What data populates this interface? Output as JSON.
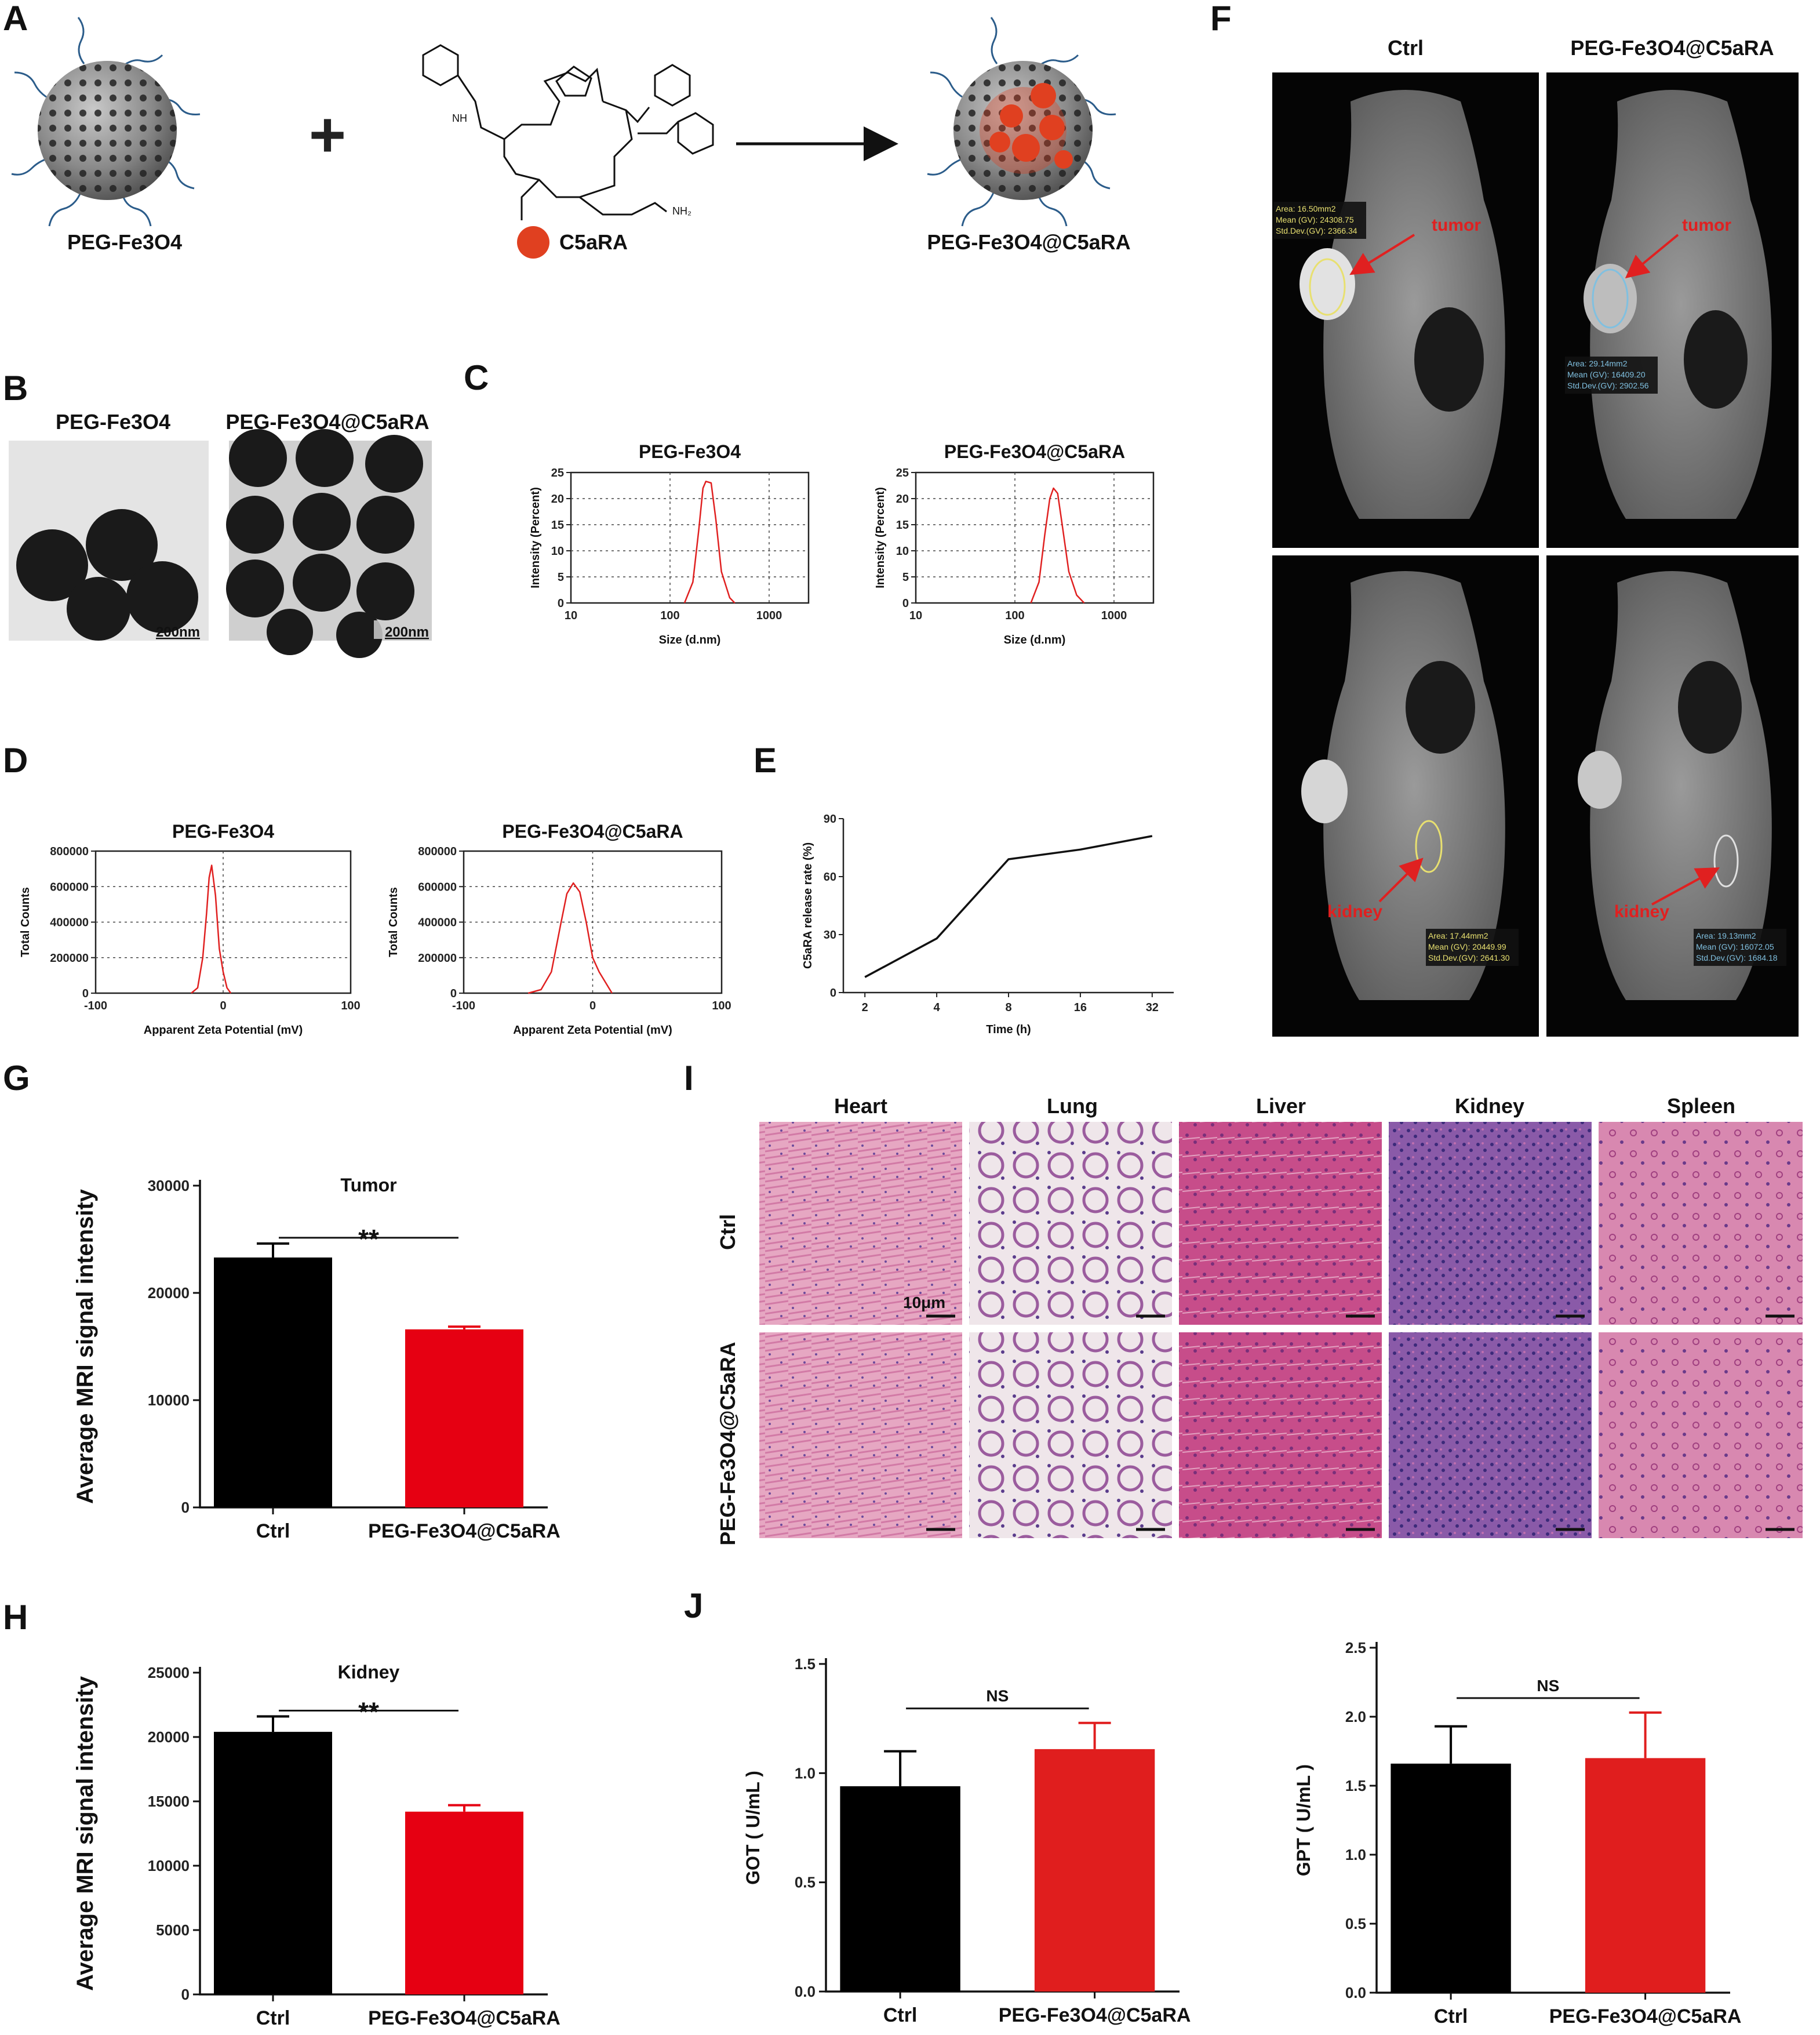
{
  "panels": {
    "A": "A",
    "B": "B",
    "C": "C",
    "D": "D",
    "E": "E",
    "F": "F",
    "G": "G",
    "H": "H",
    "I": "I",
    "J": "J"
  },
  "schematic": {
    "label_left": "PEG-Fe3O4",
    "label_right": "PEG-Fe3O4@C5aRA",
    "drug_label": "C5aRA",
    "plus": "+",
    "colors": {
      "drug": "#e04020",
      "particle": "#6b6b6b",
      "peg": "#2b5c8a"
    }
  },
  "tem": {
    "left_title": "PEG-Fe3O4",
    "right_title": "PEG-Fe3O4@C5aRA",
    "scale_left": "200nm",
    "scale_right": "200nm"
  },
  "mri": {
    "col_ctrl": "Ctrl",
    "col_treat": "PEG-Fe3O4@C5aRA",
    "tumor": "tumor",
    "kidney": "kidney",
    "roi_top_ctrl": [
      "Area: 16.50mm2",
      "Mean (GV): 24308.75",
      "Std.Dev.(GV): 2366.34"
    ],
    "roi_top_treat": [
      "Area: 29.14mm2",
      "Mean (GV): 16409.20",
      "Std.Dev.(GV): 2902.56"
    ],
    "roi_bot_ctrl": [
      "Area: 17.44mm2",
      "Mean (GV): 20449.99",
      "Std.Dev.(GV): 2641.30"
    ],
    "roi_bot_treat": [
      "Area: 19.13mm2",
      "Mean (GV): 16072.05",
      "Std.Dev.(GV): 1684.18"
    ]
  },
  "histology": {
    "cols": [
      "Heart",
      "Lung",
      "Liver",
      "Kidney",
      "Spleen"
    ],
    "rows": [
      "Ctrl",
      "PEG-Fe3O4@C5aRA"
    ],
    "scale": "10μm"
  },
  "chart_data": [
    {
      "id": "C-left",
      "type": "line",
      "title": "PEG-Fe3O4",
      "xlabel": "Size (d.nm)",
      "ylabel": "Intensity (Percent)",
      "x_scale": "log",
      "xlim": [
        10,
        2500
      ],
      "ylim": [
        0,
        25
      ],
      "xticks": [
        "10",
        "100",
        "1000"
      ],
      "yticks": [
        "0",
        "5",
        "10",
        "15",
        "20",
        "25"
      ],
      "grid": true,
      "color": "#e02020",
      "x": [
        140,
        170,
        195,
        215,
        230,
        260,
        290,
        330,
        400,
        450
      ],
      "y": [
        0,
        4,
        14,
        22,
        23.3,
        23,
        16,
        6,
        1,
        0
      ]
    },
    {
      "id": "C-right",
      "type": "line",
      "title": "PEG-Fe3O4@C5aRA",
      "xlabel": "Size (d.nm)",
      "ylabel": "Intensity (Percent)",
      "x_scale": "log",
      "xlim": [
        10,
        2500
      ],
      "ylim": [
        0,
        25
      ],
      "xticks": [
        "10",
        "100",
        "1000"
      ],
      "yticks": [
        "0",
        "5",
        "10",
        "15",
        "20",
        "25"
      ],
      "grid": true,
      "color": "#e02020",
      "x": [
        145,
        175,
        200,
        225,
        245,
        270,
        300,
        350,
        420,
        500
      ],
      "y": [
        0,
        4,
        13,
        20,
        22,
        21,
        15,
        6,
        1.5,
        0
      ]
    },
    {
      "id": "D-left",
      "type": "line",
      "title": "PEG-Fe3O4",
      "xlabel": "Apparent Zeta Potential (mV)",
      "ylabel": "Total Counts",
      "xlim": [
        -100,
        100
      ],
      "ylim": [
        0,
        800000
      ],
      "xticks": [
        "-100",
        "0",
        "100"
      ],
      "yticks": [
        "0",
        "200000",
        "400000",
        "600000",
        "800000"
      ],
      "grid": true,
      "color": "#e02020",
      "x": [
        -25,
        -20,
        -16,
        -13,
        -11,
        -9,
        -6,
        -3,
        0,
        3,
        6
      ],
      "y": [
        0,
        30000,
        200000,
        450000,
        650000,
        720000,
        550000,
        250000,
        120000,
        30000,
        0
      ]
    },
    {
      "id": "D-right",
      "type": "line",
      "title": "PEG-Fe3O4@C5aRA",
      "xlabel": "Apparent Zeta Potential (mV)",
      "ylabel": "Total Counts",
      "xlim": [
        -100,
        100
      ],
      "ylim": [
        0,
        800000
      ],
      "xticks": [
        "-100",
        "0",
        "100"
      ],
      "yticks": [
        "0",
        "200000",
        "400000",
        "600000",
        "800000"
      ],
      "grid": true,
      "color": "#e02020",
      "x": [
        -50,
        -40,
        -32,
        -25,
        -20,
        -15,
        -10,
        -5,
        0,
        5,
        10,
        15
      ],
      "y": [
        0,
        20000,
        120000,
        380000,
        560000,
        620000,
        570000,
        400000,
        200000,
        120000,
        60000,
        0
      ]
    },
    {
      "id": "E",
      "type": "line",
      "title": "",
      "xlabel": "Time (h)",
      "ylabel": "C5aRA release rate (%)",
      "categories": [
        "2",
        "4",
        "8",
        "16",
        "32"
      ],
      "values": [
        8,
        28,
        69,
        74,
        81
      ],
      "ylim": [
        0,
        90
      ],
      "yticks": [
        "0",
        "30",
        "60",
        "90"
      ],
      "color": "#111111"
    },
    {
      "id": "G",
      "type": "bar",
      "title": "Tumor",
      "ylabel": "Average MRI signal intensity",
      "categories": [
        "Ctrl",
        "PEG-Fe3O4@C5aRA"
      ],
      "values": [
        23300,
        16600
      ],
      "errors": [
        1300,
        250
      ],
      "ylim": [
        0,
        30000
      ],
      "yticks": [
        "0",
        "10000",
        "20000",
        "30000"
      ],
      "colors": [
        "#000000",
        "#e60012"
      ],
      "significance": "**"
    },
    {
      "id": "H",
      "type": "bar",
      "title": "Kidney",
      "ylabel": "Average MRI signal intensity",
      "categories": [
        "Ctrl",
        "PEG-Fe3O4@C5aRA"
      ],
      "values": [
        20400,
        14200
      ],
      "errors": [
        1200,
        500
      ],
      "ylim": [
        0,
        25000
      ],
      "yticks": [
        "0",
        "5000",
        "10000",
        "15000",
        "20000",
        "25000"
      ],
      "colors": [
        "#000000",
        "#e60012"
      ],
      "significance": "**"
    },
    {
      "id": "J-left",
      "type": "bar",
      "title": "",
      "ylabel": "GOT ( U/mL )",
      "categories": [
        "Ctrl",
        "PEG-Fe3O4@C5aRA"
      ],
      "values": [
        0.94,
        1.11
      ],
      "errors": [
        0.16,
        0.12
      ],
      "ylim": [
        0,
        1.5
      ],
      "yticks": [
        "0.0",
        "0.5",
        "1.0",
        "1.5"
      ],
      "colors": [
        "#000000",
        "#e01e1e"
      ],
      "significance": "NS"
    },
    {
      "id": "J-right",
      "type": "bar",
      "title": "",
      "ylabel": "GPT ( U/mL )",
      "categories": [
        "Ctrl",
        "PEG-Fe3O4@C5aRA"
      ],
      "values": [
        1.66,
        1.7
      ],
      "errors": [
        0.27,
        0.33
      ],
      "ylim": [
        0,
        2.5
      ],
      "yticks": [
        "0.0",
        "0.5",
        "1.0",
        "1.5",
        "2.0",
        "2.5"
      ],
      "colors": [
        "#000000",
        "#e01e1e"
      ],
      "significance": "NS"
    }
  ]
}
